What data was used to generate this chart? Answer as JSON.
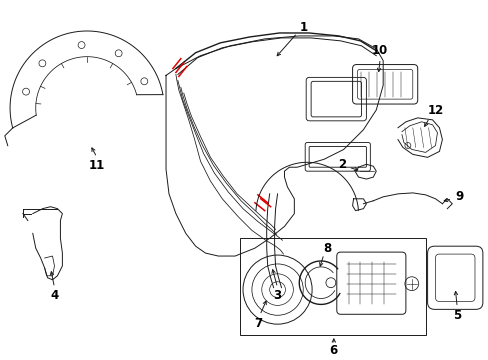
{
  "background_color": "#ffffff",
  "line_color": "#1a1a1a",
  "red_color": "#dd0000",
  "lw": 0.7,
  "figsize": [
    4.89,
    3.6
  ],
  "dpi": 100
}
